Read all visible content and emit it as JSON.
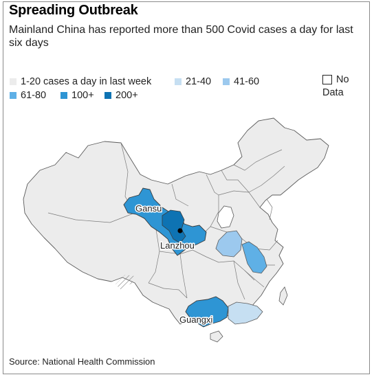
{
  "title": "Spreading Outbreak",
  "subtitle": "Mainland China has reported more than 500 Covid cases a day for last six days",
  "legend": [
    {
      "label": "1-20 cases a day in last week",
      "color": "#ececec"
    },
    {
      "label": "21-40",
      "color": "#c6dff2"
    },
    {
      "label": "41-60",
      "color": "#9cc9ee"
    },
    {
      "label": "61-80",
      "color": "#5fb0e6"
    },
    {
      "label": "100+",
      "color": "#2e95d4"
    },
    {
      "label": "200+",
      "color": "#0e73b3"
    }
  ],
  "no_data": {
    "label_line1": "No",
    "label_line2": "Data",
    "color": "#ffffff"
  },
  "map": {
    "labels": {
      "gansu": "Gansu",
      "lanzhou": "Lanzhou",
      "guangxi": "Guangxi"
    },
    "region_colors": {
      "gansu": "#2e95d4",
      "gansu_core": "#0e73b3",
      "guangxi": "#2e95d4",
      "guangdong": "#c6dff2",
      "anhui": "#5fb0e6",
      "henan": "#9cc9ee",
      "base": "#ececec",
      "border": "#5a5a5a"
    }
  },
  "source": "Source: National Health Commission"
}
